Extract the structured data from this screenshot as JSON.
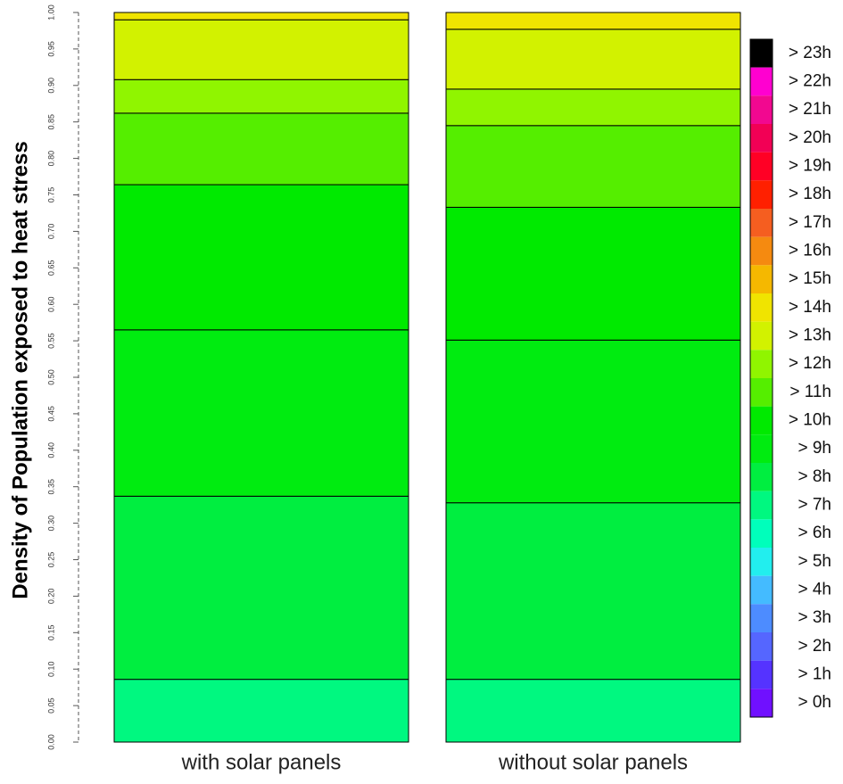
{
  "chart_data": {
    "type": "stacked_bar",
    "y_label": "Density of Population exposed to heat stress",
    "categories": [
      "with solar panels",
      "without solar panels"
    ],
    "ylim": [
      0,
      1
    ],
    "yticks": [
      {
        "value": 0,
        "label": "0.00"
      },
      {
        "value": 0.05,
        "label": "0.05"
      },
      {
        "value": 0.1,
        "label": "0.10"
      },
      {
        "value": 0.15,
        "label": "0.15"
      },
      {
        "value": 0.2,
        "label": "0.20"
      },
      {
        "value": 0.25,
        "label": "0.25"
      },
      {
        "value": 0.3,
        "label": "0.30"
      },
      {
        "value": 0.35,
        "label": "0.35"
      },
      {
        "value": 0.4,
        "label": "0.40"
      },
      {
        "value": 0.45,
        "label": "0.45"
      },
      {
        "value": 0.5,
        "label": "0.50"
      },
      {
        "value": 0.55,
        "label": "0.55"
      },
      {
        "value": 0.6,
        "label": "0.60"
      },
      {
        "value": 0.65,
        "label": "0.65"
      },
      {
        "value": 0.7,
        "label": "0.70"
      },
      {
        "value": 0.75,
        "label": "0.75"
      },
      {
        "value": 0.8,
        "label": "0.80"
      },
      {
        "value": 0.85,
        "label": "0.85"
      },
      {
        "value": 0.9,
        "label": "0.90"
      },
      {
        "value": 0.95,
        "label": "0.95"
      },
      {
        "value": 1,
        "label": "1.00"
      }
    ],
    "series": [
      {
        "name": "> 23h",
        "color": "#000000",
        "values": [
          0,
          0
        ]
      },
      {
        "name": "> 22h",
        "color": "#ff00d0",
        "values": [
          0,
          0
        ]
      },
      {
        "name": "> 21h",
        "color": "#f20890",
        "values": [
          0,
          0
        ]
      },
      {
        "name": "> 20h",
        "color": "#f20055",
        "values": [
          0,
          0
        ]
      },
      {
        "name": "> 19h",
        "color": "#ff0025",
        "values": [
          0,
          0
        ]
      },
      {
        "name": "> 18h",
        "color": "#ff2000",
        "values": [
          0,
          0
        ]
      },
      {
        "name": "> 17h",
        "color": "#f55e20",
        "values": [
          0,
          0
        ]
      },
      {
        "name": "> 16h",
        "color": "#f58a10",
        "values": [
          0,
          0
        ]
      },
      {
        "name": "> 15h",
        "color": "#f5b800",
        "values": [
          0,
          0
        ]
      },
      {
        "name": "> 14h",
        "color": "#f0e400",
        "values": [
          0.01,
          0.023
        ]
      },
      {
        "name": "> 13h",
        "color": "#d2f200",
        "values": [
          0.082,
          0.082
        ]
      },
      {
        "name": "> 12h",
        "color": "#90f500",
        "values": [
          0.046,
          0.05
        ]
      },
      {
        "name": "> 11h",
        "color": "#55ee00",
        "values": [
          0.098,
          0.112
        ]
      },
      {
        "name": "> 10h",
        "color": "#00ea00",
        "values": [
          0.199,
          0.182
        ]
      },
      {
        "name": "> 9h",
        "color": "#00ec10",
        "values": [
          0.228,
          0.223
        ]
      },
      {
        "name": "> 8h",
        "color": "#00ee40",
        "values": [
          0.251,
          0.242
        ]
      },
      {
        "name": "> 7h",
        "color": "#00f880",
        "values": [
          0.086,
          0.086
        ]
      },
      {
        "name": "> 6h",
        "color": "#00ffbb",
        "values": [
          0,
          0
        ]
      },
      {
        "name": "> 5h",
        "color": "#22eeee",
        "values": [
          0,
          0
        ]
      },
      {
        "name": "> 4h",
        "color": "#44bbff",
        "values": [
          0,
          0
        ]
      },
      {
        "name": "> 3h",
        "color": "#4d8cff",
        "values": [
          0,
          0
        ]
      },
      {
        "name": "> 2h",
        "color": "#5566ff",
        "values": [
          0,
          0
        ]
      },
      {
        "name": "> 1h",
        "color": "#5533ff",
        "values": [
          0,
          0
        ]
      },
      {
        "name": "> 0h",
        "color": "#7010ff",
        "values": [
          0,
          0
        ]
      }
    ],
    "stack_order": "bottom-up-from-last"
  }
}
